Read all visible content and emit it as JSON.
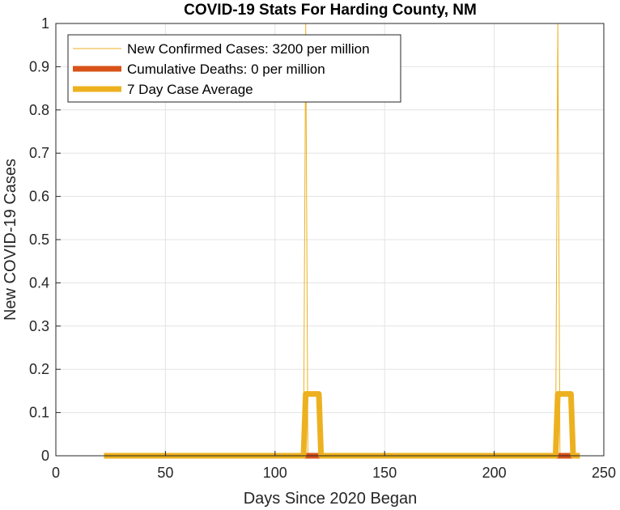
{
  "chart_data": {
    "type": "line",
    "title": "COVID-19 Stats For Harding County, NM",
    "xlabel": "Days Since 2020 Began",
    "ylabel": "New COVID-19 Cases",
    "xlim": [
      0,
      250
    ],
    "ylim": [
      0,
      1
    ],
    "xticks": [
      0,
      50,
      100,
      150,
      200,
      250
    ],
    "yticks": [
      0,
      0.1,
      0.2,
      0.3,
      0.4,
      0.5,
      0.6,
      0.7,
      0.8,
      0.9,
      1
    ],
    "xtick_labels": [
      "0",
      "50",
      "100",
      "150",
      "200",
      "250"
    ],
    "ytick_labels": [
      "0",
      "0.1",
      "0.2",
      "0.3",
      "0.4",
      "0.5",
      "0.6",
      "0.7",
      "0.8",
      "0.9",
      "1"
    ],
    "grid": true,
    "legend_position": "top-left",
    "series": [
      {
        "name": "New Confirmed Cases: 3200 per million",
        "color": "#EDB120",
        "style": "thin",
        "x": [
          22,
          113,
          114,
          115,
          228,
          229,
          230,
          239
        ],
        "y": [
          0,
          0,
          1,
          0,
          0,
          1,
          0,
          0
        ]
      },
      {
        "name": "Cumulative Deaths: 0 per million",
        "color": "#D95319",
        "style": "thick",
        "x": [
          22,
          239
        ],
        "y": [
          0,
          0
        ]
      },
      {
        "name": "7 Day Case Average",
        "color": "#EDB120",
        "style": "thick",
        "x": [
          22,
          113,
          114,
          120,
          121,
          228,
          229,
          235,
          236,
          239
        ],
        "y": [
          0,
          0,
          0.143,
          0.143,
          0,
          0,
          0.143,
          0.143,
          0,
          0
        ]
      }
    ]
  }
}
